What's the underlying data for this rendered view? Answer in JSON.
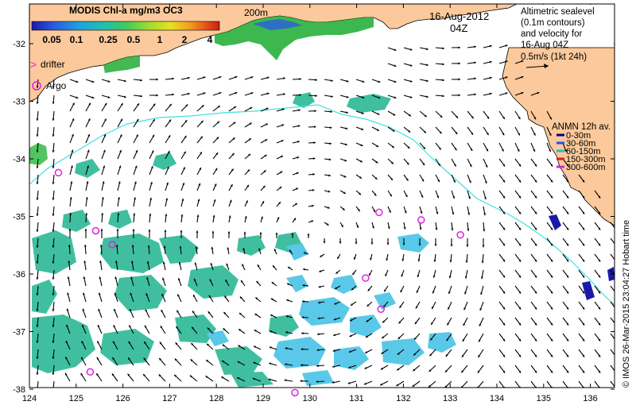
{
  "colorbar": {
    "title": "MODIS Chl-a mg/m3 OC3",
    "ticks": [
      "0.05",
      "0.1",
      "0.25",
      "0.5",
      "1",
      "2",
      "4"
    ],
    "colors": [
      "#1a1aa8",
      "#2a5de0",
      "#1fa0e0",
      "#20c0b0",
      "#40c860",
      "#9adc30",
      "#e8e020",
      "#f0a020",
      "#e85018",
      "#c82010"
    ]
  },
  "contour_label": "200m",
  "date": "16-Aug-2012",
  "time": "04Z",
  "altimetry_note": {
    "lines": [
      "Altimetric sealevel",
      "(0.1m contours)",
      "and velocity for",
      "16-Aug 04Z"
    ],
    "scale_label": "0.5m/s (1kt 24h)"
  },
  "legend": {
    "drifter": "drifter",
    "argo": "Argo"
  },
  "anmn": {
    "title": "ANMN 12h av.",
    "items": [
      {
        "label": "0-30m",
        "color": "#000080"
      },
      {
        "label": "30-60m",
        "color": "#2050ff"
      },
      {
        "label": "60-150m",
        "color": "#20c0c0"
      },
      {
        "label": "150-300m",
        "color": "#d02020"
      },
      {
        "label": "300-600m",
        "color": "#e020e0"
      }
    ]
  },
  "credit": "© IMOS 26-Mar-2015 23:04:27 Hobart time",
  "axes": {
    "x_ticks": [
      "124",
      "125",
      "126",
      "127",
      "128",
      "129",
      "130",
      "131",
      "132",
      "133",
      "134",
      "135",
      "136"
    ],
    "y_ticks": [
      "-32",
      "-33",
      "-34",
      "-35",
      "-36",
      "-37",
      "-38"
    ]
  },
  "colors": {
    "land": "#fbc99b",
    "ocean": "#ffffff",
    "contour": "#40e0e0",
    "arrow": "#000000",
    "argo": "#e020e0",
    "chl_low": "#3fbfa0",
    "chl_mid": "#5ac8e8",
    "chl_high": "#30c040"
  },
  "argo_floats": [
    {
      "lon": 124.62,
      "lat": -34.24
    },
    {
      "lon": 125.42,
      "lat": -35.25
    },
    {
      "lon": 125.77,
      "lat": -35.49
    },
    {
      "lon": 131.48,
      "lat": -34.93
    },
    {
      "lon": 132.38,
      "lat": -35.06
    },
    {
      "lon": 133.22,
      "lat": -35.32
    },
    {
      "lon": 131.19,
      "lat": -36.07
    },
    {
      "lon": 131.52,
      "lat": -36.61
    },
    {
      "lon": 125.3,
      "lat": -37.7
    },
    {
      "lon": 129.68,
      "lat": -38.06
    }
  ]
}
